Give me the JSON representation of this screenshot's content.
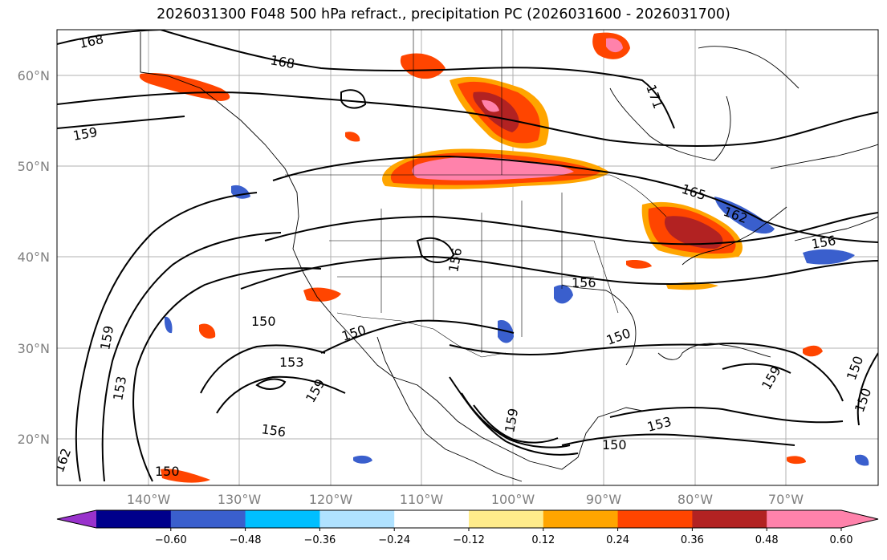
{
  "title": "2026031300 F048 500 hPa refract., precipitation PC (2026031600 - 2026031700)",
  "map": {
    "lat_labels": [
      "60°N",
      "50°N",
      "40°N",
      "30°N",
      "20°N"
    ],
    "lon_labels": [
      "140°W",
      "130°W",
      "120°W",
      "110°W",
      "100°W",
      "90°W",
      "80°W",
      "70°W"
    ],
    "contour_labels": [
      "168",
      "168",
      "171",
      "159",
      "165",
      "162",
      "156",
      "156",
      "156",
      "150",
      "150",
      "153",
      "159",
      "159",
      "153",
      "156",
      "150",
      "150",
      "150",
      "153",
      "159",
      "150",
      "162",
      "159",
      "150"
    ]
  },
  "colorbar": {
    "colors": [
      "#9932cc",
      "#00008b",
      "#3a5fcd",
      "#00bfff",
      "#b0e2ff",
      "#ffffff",
      "#ffec8b",
      "#ffa500",
      "#ff4500",
      "#b22222",
      "#ff82ab",
      "#ff82ab"
    ],
    "labels": [
      "−0.60",
      "−0.48",
      "−0.36",
      "−0.24",
      "−0.12",
      "0.12",
      "0.24",
      "0.36",
      "0.48",
      "0.60"
    ]
  }
}
